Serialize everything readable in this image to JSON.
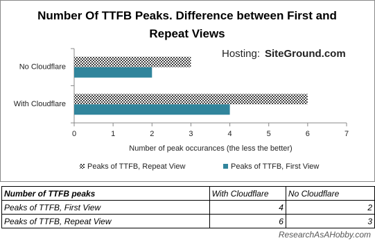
{
  "chart_data": {
    "type": "hbar",
    "title": "Number Of TTFB Peaks. Difference between First and Repeat Views",
    "annotation_label": "Hosting:",
    "annotation": "SiteGround.com",
    "x_label": "Number  of peak occurances (the less the better)",
    "categories": [
      "No Cloudflare",
      "With Cloudflare"
    ],
    "series": [
      {
        "name": "Peaks of TTFB, Repeat View",
        "color": "#404040",
        "pattern": "checkered",
        "values": [
          3,
          6
        ]
      },
      {
        "name": "Peaks of TTFB, First View",
        "color": "#31859c",
        "values": [
          2,
          4
        ]
      }
    ],
    "xlim": [
      0,
      7
    ],
    "xticks": [
      0,
      1,
      2,
      3,
      4,
      5,
      6,
      7
    ],
    "legend": "bottom"
  },
  "table": {
    "header": [
      "Number of TTFB peaks",
      "With Cloudflare",
      "No Cloudflare"
    ],
    "rows": [
      [
        "Peaks of TTFB, First View",
        4,
        2
      ],
      [
        "Peaks of TTFB, Repeat View",
        6,
        3
      ]
    ]
  },
  "watermark": "ResearchAsAHobby.com"
}
